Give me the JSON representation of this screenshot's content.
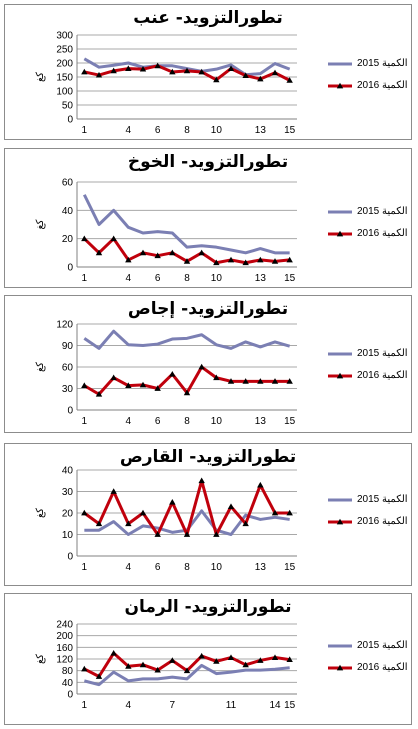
{
  "chart_data": [
    {
      "type": "line",
      "title": "تطورالتزويد- عنب",
      "ylabel": "كغ",
      "categories": [
        "1",
        "2",
        "3",
        "4",
        "5",
        "6",
        "7",
        "8",
        "9",
        "10",
        "11",
        "12",
        "13",
        "14",
        "15"
      ],
      "tick_labels": [
        "1",
        "4",
        "6",
        "8",
        "10",
        "13",
        "15"
      ],
      "ylim": [
        0,
        300
      ],
      "yticks": [
        0,
        50,
        100,
        150,
        200,
        250,
        300
      ],
      "legend": "right",
      "grid": true,
      "series": [
        {
          "name": "الكمية 2015",
          "color": "#7b7fb3",
          "marker": "none",
          "values": [
            215,
            185,
            192,
            200,
            185,
            190,
            190,
            180,
            170,
            178,
            193,
            158,
            162,
            198,
            178
          ]
        },
        {
          "name": "الكمية 2016",
          "color": "#c0000c",
          "marker": "triangle",
          "values": [
            168,
            157,
            172,
            180,
            178,
            190,
            168,
            172,
            168,
            140,
            180,
            155,
            143,
            165,
            138
          ]
        }
      ]
    },
    {
      "type": "line",
      "title": "تطورالتزويد- الخوخ",
      "ylabel": "كغ",
      "categories": [
        "1",
        "2",
        "3",
        "4",
        "5",
        "6",
        "7",
        "8",
        "9",
        "10",
        "11",
        "12",
        "13",
        "14",
        "15"
      ],
      "tick_labels": [
        "1",
        "4",
        "6",
        "8",
        "10",
        "13",
        "15"
      ],
      "ylim": [
        0,
        60
      ],
      "yticks": [
        0,
        20,
        40,
        60
      ],
      "legend": "right",
      "grid": true,
      "series": [
        {
          "name": "الكمية 2015",
          "color": "#7b7fb3",
          "marker": "none",
          "values": [
            51,
            30,
            40,
            28,
            24,
            25,
            24,
            14,
            15,
            14,
            12,
            10,
            13,
            10,
            10
          ]
        },
        {
          "name": "الكمية 2016",
          "color": "#c0000c",
          "marker": "triangle",
          "values": [
            20,
            10,
            20,
            5,
            10,
            8,
            10,
            4,
            10,
            3,
            5,
            3,
            5,
            4,
            5
          ]
        }
      ]
    },
    {
      "type": "line",
      "title": "تطورالتزويد- إجاص",
      "ylabel": "كغ",
      "categories": [
        "1",
        "2",
        "3",
        "4",
        "5",
        "6",
        "7",
        "8",
        "9",
        "10",
        "11",
        "12",
        "13",
        "14",
        "15"
      ],
      "tick_labels": [
        "1",
        "4",
        "6",
        "8",
        "10",
        "13",
        "15"
      ],
      "ylim": [
        0,
        120
      ],
      "yticks": [
        0,
        30,
        60,
        90,
        120
      ],
      "legend": "right",
      "grid": true,
      "series": [
        {
          "name": "الكمية 2015",
          "color": "#7b7fb3",
          "marker": "none",
          "values": [
            100,
            86,
            110,
            91,
            90,
            92,
            99,
            100,
            105,
            91,
            86,
            95,
            88,
            95,
            89
          ]
        },
        {
          "name": "الكمية 2016",
          "color": "#c0000c",
          "marker": "triangle",
          "values": [
            34,
            22,
            45,
            34,
            35,
            30,
            50,
            24,
            60,
            45,
            40,
            40,
            40,
            40,
            40
          ]
        }
      ]
    },
    {
      "type": "line",
      "title": "تطورالتزويد- القارص",
      "ylabel": "كغ",
      "categories": [
        "1",
        "2",
        "3",
        "4",
        "5",
        "6",
        "7",
        "8",
        "9",
        "10",
        "11",
        "12",
        "13",
        "14",
        "15"
      ],
      "tick_labels": [
        "1",
        "4",
        "6",
        "8",
        "10",
        "13",
        "15"
      ],
      "ylim": [
        0,
        40
      ],
      "yticks": [
        0,
        10,
        20,
        30,
        40
      ],
      "legend": "right",
      "grid": true,
      "series": [
        {
          "name": "الكمية 2015",
          "color": "#7b7fb3",
          "marker": "none",
          "values": [
            12,
            12,
            16,
            10,
            14,
            13,
            11,
            12,
            21,
            12,
            10,
            19,
            17,
            18,
            17
          ]
        },
        {
          "name": "الكمية 2016",
          "color": "#c0000c",
          "marker": "triangle",
          "values": [
            20,
            15,
            30,
            15,
            20,
            10,
            25,
            10,
            35,
            10,
            23,
            15,
            33,
            20,
            20
          ]
        }
      ]
    },
    {
      "type": "line",
      "title": "تطورالتزويد- الرمان",
      "ylabel": "كغ",
      "categories": [
        "1",
        "2",
        "3",
        "4",
        "5",
        "6",
        "7",
        "8",
        "9",
        "10",
        "11",
        "12",
        "13",
        "14",
        "15"
      ],
      "tick_labels": [
        "1",
        "4",
        "7",
        "11",
        "14",
        "15"
      ],
      "ylim": [
        0,
        240
      ],
      "yticks": [
        0,
        40,
        80,
        120,
        160,
        200,
        240
      ],
      "legend": "right",
      "grid": true,
      "series": [
        {
          "name": "الكمية 2015",
          "color": "#7b7fb3",
          "marker": "none",
          "values": [
            45,
            32,
            75,
            45,
            52,
            52,
            58,
            52,
            98,
            70,
            75,
            82,
            82,
            85,
            90
          ]
        },
        {
          "name": "الكمية 2016",
          "color": "#c0000c",
          "marker": "triangle",
          "values": [
            86,
            60,
            140,
            95,
            100,
            82,
            115,
            80,
            130,
            112,
            125,
            100,
            115,
            125,
            118
          ]
        }
      ]
    }
  ]
}
